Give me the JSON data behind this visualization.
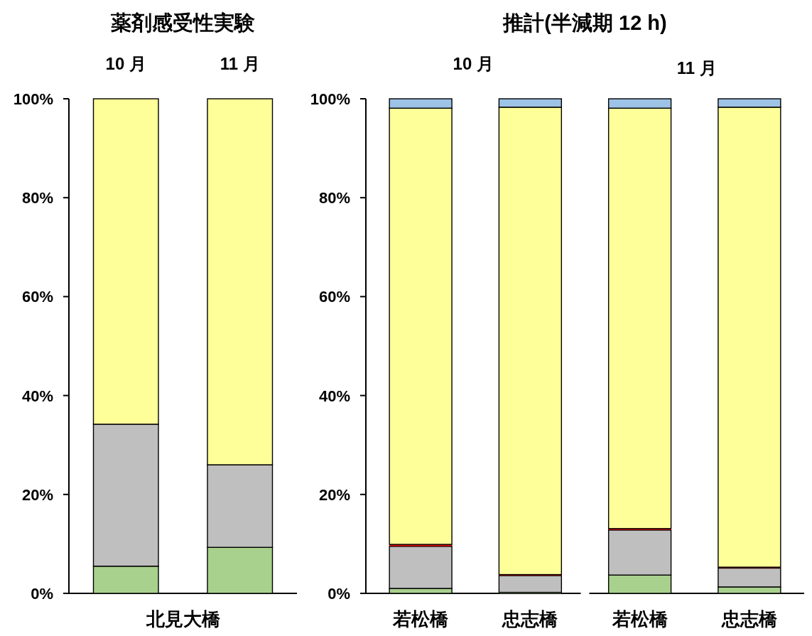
{
  "chart_data": [
    {
      "type": "bar",
      "title": "薬剤感受性実験",
      "xlabel": "北見大橋",
      "stacked": true,
      "categories": [
        "10 月",
        "11 月"
      ],
      "ylim": [
        0,
        100
      ],
      "yticks": [
        {
          "value": 0,
          "label": "0%"
        },
        {
          "value": 20,
          "label": "20%"
        },
        {
          "value": 40,
          "label": "40%"
        },
        {
          "value": 60,
          "label": "60%"
        },
        {
          "value": 80,
          "label": "80%"
        },
        {
          "value": 100,
          "label": "100%"
        }
      ],
      "grid": false,
      "series": [
        {
          "color": "#a9d18e",
          "values": [
            5.5,
            9.3
          ]
        },
        {
          "color": "#bfbfbf",
          "values": [
            28.7,
            16.7
          ]
        },
        {
          "color": "#ffff99",
          "values": [
            65.8,
            74.0
          ]
        }
      ]
    },
    {
      "type": "bar",
      "title": "推計(半減期 12 h)",
      "stacked": true,
      "categories": [
        "若松橋",
        "忠志橋",
        "若松橋",
        "忠志橋"
      ],
      "annotations": [
        "10 月",
        "11 月"
      ],
      "ylim": [
        0,
        100
      ],
      "yticks": [
        {
          "value": 0,
          "label": "0%"
        },
        {
          "value": 20,
          "label": "20%"
        },
        {
          "value": 40,
          "label": "40%"
        },
        {
          "value": 60,
          "label": "60%"
        },
        {
          "value": 80,
          "label": "80%"
        },
        {
          "value": 100,
          "label": "100%"
        }
      ],
      "grid": false,
      "series": [
        {
          "color": "#a9d18e",
          "values": [
            1.0,
            0.2,
            3.7,
            1.3
          ]
        },
        {
          "color": "#bfbfbf",
          "values": [
            8.5,
            3.4,
            9.1,
            3.8
          ]
        },
        {
          "color": "#e00000",
          "values": [
            0.4,
            0.2,
            0.3,
            0.2
          ]
        },
        {
          "color": "#ffff99",
          "values": [
            88.2,
            94.5,
            85.0,
            93.0
          ]
        },
        {
          "color": "#9dc3e6",
          "values": [
            1.9,
            1.7,
            1.9,
            1.7
          ]
        }
      ]
    }
  ]
}
